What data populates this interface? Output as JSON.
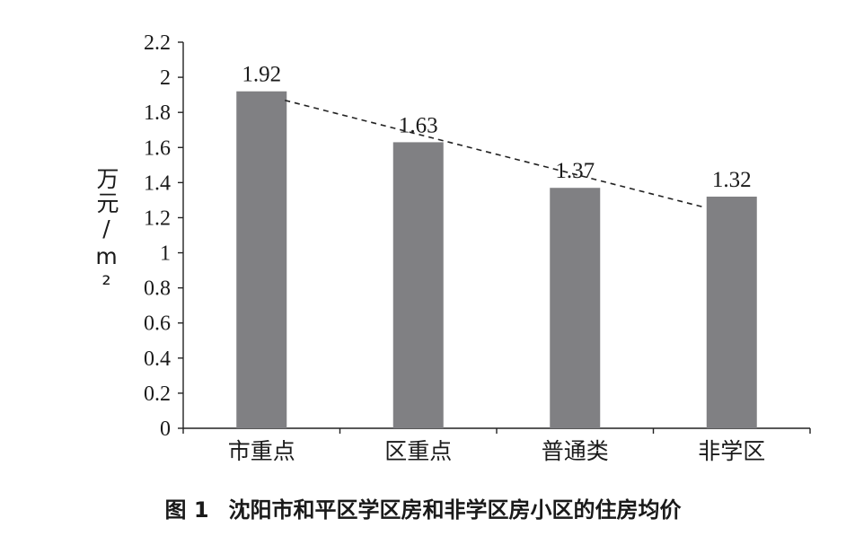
{
  "chart_data": {
    "type": "bar",
    "categories": [
      "市重点",
      "区重点",
      "普通类",
      "非学区"
    ],
    "values": [
      1.92,
      1.63,
      1.37,
      1.32
    ],
    "data_labels": [
      "1.92",
      "1.63",
      "1.37",
      "1.32"
    ],
    "ylabel": "万元/m²",
    "ylim": [
      0,
      2.2
    ],
    "yticks": [
      "0",
      "0.2",
      "0.4",
      "0.6",
      "0.8",
      "1",
      "1.2",
      "1.4",
      "1.6",
      "1.8",
      "2",
      "2.2"
    ],
    "trendline": {
      "style": "dashed",
      "from_category": "市重点",
      "to_category": "非学区"
    },
    "grid": false,
    "bar_color": "#808083"
  },
  "caption": {
    "number": "图 1",
    "text": "沈阳市和平区学区房和非学区房小区的住房均价"
  }
}
